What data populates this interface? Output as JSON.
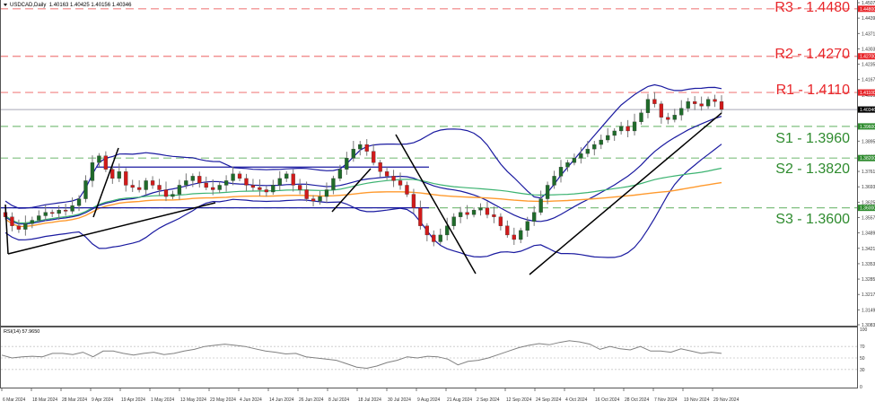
{
  "header": {
    "symbol_timeframe": "USDCAD,Daily",
    "ohlc": "1.40163 1.40425 1.40156 1.40346"
  },
  "rsi_header": {
    "label": "RSI(14) 57.9650"
  },
  "levels": [
    {
      "name": "R3",
      "label": "R3 - 1.4480",
      "value": 1.448,
      "type": "resistance",
      "axis_tag": "1.44800"
    },
    {
      "name": "R2",
      "label": "R2 - 1.4270",
      "value": 1.427,
      "type": "resistance",
      "axis_tag": "1.42700"
    },
    {
      "name": "R1",
      "label": "R1 - 1.4110",
      "value": 1.411,
      "type": "resistance",
      "axis_tag": "1.41100"
    },
    {
      "name": "S1",
      "label": "S1 - 1.3960",
      "value": 1.396,
      "type": "support",
      "axis_tag": "1.39600"
    },
    {
      "name": "S2",
      "label": "S2 - 1.3820",
      "value": 1.382,
      "type": "support",
      "axis_tag": "1.38200"
    },
    {
      "name": "S3",
      "label": "S3 - 1.3600",
      "value": 1.36,
      "type": "support",
      "axis_tag": "1.36000"
    }
  ],
  "current_price": {
    "value": 1.40346,
    "tag": "1.40346"
  },
  "colors": {
    "resistance": "#e8262a",
    "support": "#2e8b2e",
    "bullish": "#1f6b2a",
    "bearish": "#d11a1a",
    "bollinger": "#1a1aa0",
    "ma_green": "#3cb371",
    "ma_orange": "#ff9a2e",
    "trendline": "#000000",
    "rsi_line": "#808080"
  },
  "chart_data": {
    "type": "candlestick",
    "title": "USDCAD,Daily",
    "price_axis": {
      "ticks": [
        "1.45070",
        "1.44390",
        "1.43710",
        "1.43030",
        "1.42350",
        "1.41670",
        "1.40990",
        "1.40310",
        "1.39630",
        "1.38950",
        "1.38270",
        "1.37610",
        "1.36930",
        "1.36250",
        "1.35570",
        "1.34890",
        "1.34210",
        "1.33530",
        "1.32850",
        "1.32170",
        "1.31490",
        "1.30830"
      ],
      "range": [
        1.3083,
        1.4507
      ]
    },
    "x_axis": {
      "ticks": [
        "6 Mar 2024",
        "18 Mar 2024",
        "28 Mar 2024",
        "9 Apr 2024",
        "19 Apr 2024",
        "1 May 2024",
        "13 May 2024",
        "23 May 2024",
        "4 Jun 2024",
        "14 Jun 2024",
        "26 Jun 2024",
        "8 Jul 2024",
        "18 Jul 2024",
        "30 Jul 2024",
        "9 Aug 2024",
        "21 Aug 2024",
        "2 Sep 2024",
        "12 Sep 2024",
        "24 Sep 2024",
        "4 Oct 2024",
        "16 Oct 2024",
        "28 Oct 2024",
        "7 Nov 2024",
        "19 Nov 2024",
        "29 Nov 2024"
      ]
    },
    "indicators": [
      "Bollinger Bands",
      "Moving Average (green)",
      "Moving Average (orange)",
      "RSI(14)"
    ],
    "close_series": [
      1.356,
      1.352,
      1.3505,
      1.353,
      1.3545,
      1.3565,
      1.358,
      1.3575,
      1.359,
      1.3585,
      1.361,
      1.364,
      1.372,
      1.38,
      1.383,
      1.377,
      1.373,
      1.376,
      1.37,
      1.369,
      1.368,
      1.372,
      1.37,
      1.368,
      1.365,
      1.366,
      1.37,
      1.372,
      1.374,
      1.371,
      1.369,
      1.368,
      1.37,
      1.372,
      1.375,
      1.373,
      1.37,
      1.369,
      1.368,
      1.367,
      1.37,
      1.373,
      1.375,
      1.37,
      1.368,
      1.364,
      1.363,
      1.365,
      1.368,
      1.373,
      1.377,
      1.382,
      1.386,
      1.388,
      1.385,
      1.38,
      1.376,
      1.374,
      1.372,
      1.37,
      1.366,
      1.36,
      1.352,
      1.348,
      1.345,
      1.348,
      1.352,
      1.356,
      1.358,
      1.357,
      1.359,
      1.36,
      1.357,
      1.356,
      1.352,
      1.348,
      1.346,
      1.35,
      1.354,
      1.358,
      1.364,
      1.37,
      1.374,
      1.378,
      1.38,
      1.382,
      1.384,
      1.386,
      1.388,
      1.39,
      1.392,
      1.394,
      1.396,
      1.394,
      1.398,
      1.402,
      1.408,
      1.406,
      1.4,
      1.399,
      1.401,
      1.404,
      1.407,
      1.406,
      1.405,
      1.408,
      1.407,
      1.4035
    ],
    "levels": {
      "R3": 1.448,
      "R2": 1.427,
      "R1": 1.411,
      "S1": 1.396,
      "S2": 1.382,
      "S3": 1.36
    },
    "rsi": {
      "period": 14,
      "last": 57.965,
      "levels": [
        70,
        50,
        30
      ],
      "range": [
        0,
        100
      ],
      "approx_values": [
        55,
        50,
        52,
        53,
        52,
        58,
        58,
        56,
        60,
        52,
        62,
        62,
        58,
        55,
        58,
        60,
        56,
        58,
        62,
        65,
        70,
        72,
        74,
        72,
        70,
        66,
        62,
        60,
        57,
        58,
        52,
        50,
        48,
        46,
        40,
        34,
        32,
        36,
        42,
        46,
        52,
        50,
        53,
        52,
        48,
        38,
        44,
        46,
        50,
        56,
        62,
        68,
        72,
        75,
        73,
        77,
        80,
        78,
        74,
        65,
        70,
        66,
        64,
        70,
        62,
        62,
        60,
        66,
        62,
        58,
        60,
        58
      ]
    }
  }
}
